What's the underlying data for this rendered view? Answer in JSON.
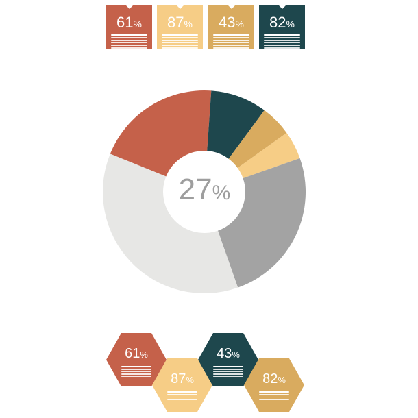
{
  "colors": {
    "red": "#c5614a",
    "light_yellow": "#f6cd86",
    "gold": "#d9ab5f",
    "teal": "#1e474d",
    "light_gray": "#e7e7e5",
    "gray": "#a3a3a3"
  },
  "top_tags": [
    {
      "value": "61",
      "unit": "%",
      "color": "#c5614a"
    },
    {
      "value": "87",
      "unit": "%",
      "color": "#f6cd86"
    },
    {
      "value": "43",
      "unit": "%",
      "color": "#d9ab5f"
    },
    {
      "value": "82",
      "unit": "%",
      "color": "#1e474d"
    }
  ],
  "chart_data": {
    "type": "pie",
    "style": "donut",
    "center_label": {
      "value": "27",
      "unit": "%"
    },
    "slices": [
      {
        "value": 20,
        "color": "#c5614a"
      },
      {
        "value": 9,
        "color": "#1e474d"
      },
      {
        "value": 5,
        "color": "#d9ab5f"
      },
      {
        "value": 4.5,
        "color": "#f6cd86"
      },
      {
        "value": 25,
        "color": "#a3a3a3"
      },
      {
        "value": 36.5,
        "color": "#e7e7e5"
      }
    ]
  },
  "hexagons": [
    {
      "value": "61",
      "unit": "%",
      "color": "#c5614a"
    },
    {
      "value": "87",
      "unit": "%",
      "color": "#f6cd86"
    },
    {
      "value": "43",
      "unit": "%",
      "color": "#1e474d"
    },
    {
      "value": "82",
      "unit": "%",
      "color": "#d9ab5f"
    }
  ]
}
